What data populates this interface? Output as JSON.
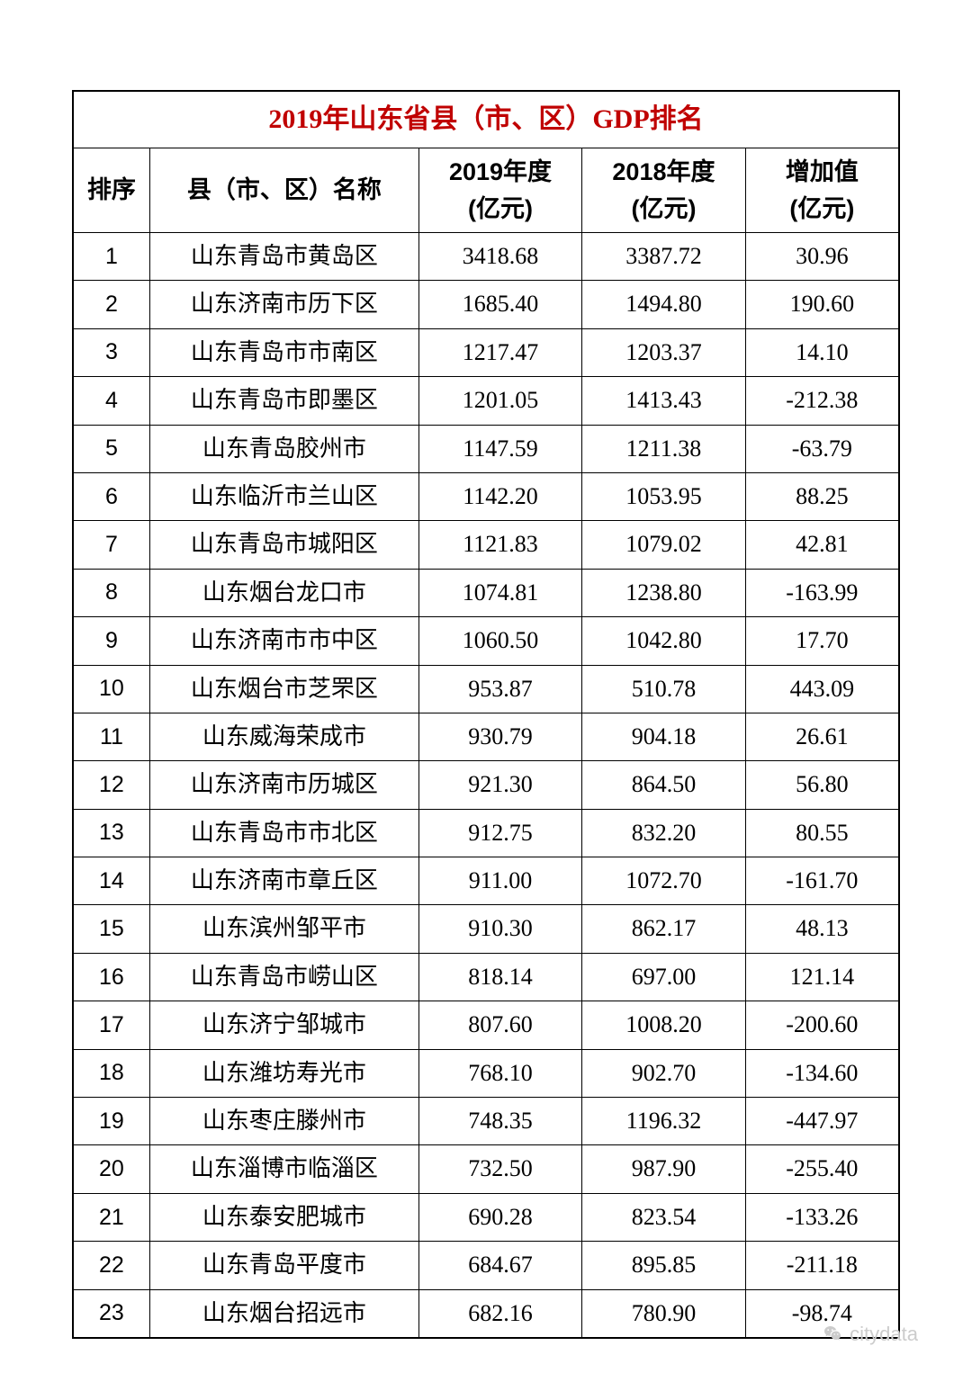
{
  "title": "2019年山东省县（市、区）GDP排名",
  "title_color": "#c00000",
  "header": {
    "rank": "排序",
    "name": "县（市、区）名称",
    "y2019_line1": "2019年度",
    "y2019_line2": "(亿元)",
    "y2018_line1": "2018年度",
    "y2018_line2": "(亿元)",
    "diff_line1": "增加值",
    "diff_line2": "(亿元)"
  },
  "rows": [
    {
      "rank": "1",
      "name": "山东青岛市黄岛区",
      "y2019": "3418.68",
      "y2018": "3387.72",
      "diff": "30.96"
    },
    {
      "rank": "2",
      "name": "山东济南市历下区",
      "y2019": "1685.40",
      "y2018": "1494.80",
      "diff": "190.60"
    },
    {
      "rank": "3",
      "name": "山东青岛市市南区",
      "y2019": "1217.47",
      "y2018": "1203.37",
      "diff": "14.10"
    },
    {
      "rank": "4",
      "name": "山东青岛市即墨区",
      "y2019": "1201.05",
      "y2018": "1413.43",
      "diff": "-212.38"
    },
    {
      "rank": "5",
      "name": "山东青岛胶州市",
      "y2019": "1147.59",
      "y2018": "1211.38",
      "diff": "-63.79"
    },
    {
      "rank": "6",
      "name": "山东临沂市兰山区",
      "y2019": "1142.20",
      "y2018": "1053.95",
      "diff": "88.25"
    },
    {
      "rank": "7",
      "name": "山东青岛市城阳区",
      "y2019": "1121.83",
      "y2018": "1079.02",
      "diff": "42.81"
    },
    {
      "rank": "8",
      "name": "山东烟台龙口市",
      "y2019": "1074.81",
      "y2018": "1238.80",
      "diff": "-163.99"
    },
    {
      "rank": "9",
      "name": "山东济南市市中区",
      "y2019": "1060.50",
      "y2018": "1042.80",
      "diff": "17.70"
    },
    {
      "rank": "10",
      "name": "山东烟台市芝罘区",
      "y2019": "953.87",
      "y2018": "510.78",
      "diff": "443.09"
    },
    {
      "rank": "11",
      "name": "山东威海荣成市",
      "y2019": "930.79",
      "y2018": "904.18",
      "diff": "26.61"
    },
    {
      "rank": "12",
      "name": "山东济南市历城区",
      "y2019": "921.30",
      "y2018": "864.50",
      "diff": "56.80"
    },
    {
      "rank": "13",
      "name": "山东青岛市市北区",
      "y2019": "912.75",
      "y2018": "832.20",
      "diff": "80.55"
    },
    {
      "rank": "14",
      "name": "山东济南市章丘区",
      "y2019": "911.00",
      "y2018": "1072.70",
      "diff": "-161.70"
    },
    {
      "rank": "15",
      "name": "山东滨州邹平市",
      "y2019": "910.30",
      "y2018": "862.17",
      "diff": "48.13"
    },
    {
      "rank": "16",
      "name": "山东青岛市崂山区",
      "y2019": "818.14",
      "y2018": "697.00",
      "diff": "121.14"
    },
    {
      "rank": "17",
      "name": "山东济宁邹城市",
      "y2019": "807.60",
      "y2018": "1008.20",
      "diff": "-200.60"
    },
    {
      "rank": "18",
      "name": "山东潍坊寿光市",
      "y2019": "768.10",
      "y2018": "902.70",
      "diff": "-134.60"
    },
    {
      "rank": "19",
      "name": "山东枣庄滕州市",
      "y2019": "748.35",
      "y2018": "1196.32",
      "diff": "-447.97"
    },
    {
      "rank": "20",
      "name": "山东淄博市临淄区",
      "y2019": "732.50",
      "y2018": "987.90",
      "diff": "-255.40"
    },
    {
      "rank": "21",
      "name": "山东泰安肥城市",
      "y2019": "690.28",
      "y2018": "823.54",
      "diff": "-133.26"
    },
    {
      "rank": "22",
      "name": "山东青岛平度市",
      "y2019": "684.67",
      "y2018": "895.85",
      "diff": "-211.18"
    },
    {
      "rank": "23",
      "name": "山东烟台招远市",
      "y2019": "682.16",
      "y2018": "780.90",
      "diff": "-98.74"
    }
  ],
  "watermark": "citydata",
  "colors": {
    "border": "#000000",
    "background": "#ffffff",
    "watermark": "#cccccc"
  }
}
